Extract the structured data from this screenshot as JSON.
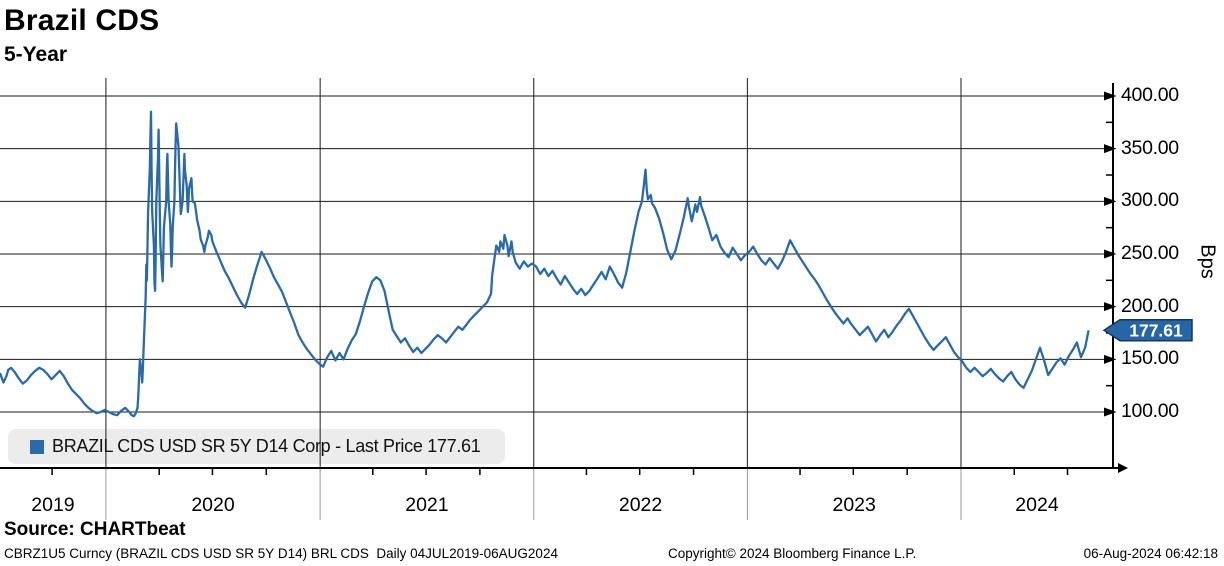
{
  "header": {
    "title": "Brazil CDS",
    "subtitle": "5-Year"
  },
  "legend": {
    "swatch_icon": "blue-square-marker",
    "swatch_color": "#2a6aa8",
    "label": "BRAZIL CDS USD SR 5Y D14 Corp - Last Price 177.61"
  },
  "price_tag": {
    "value": "177.61",
    "fill": "#2766a4",
    "border": "#16365a",
    "text_color": "#ffffff"
  },
  "footer": {
    "source": "Source: CHARTbeat",
    "description": "CBRZ1U5 Curncy (BRAZIL CDS USD SR 5Y D14) BRL CDS  Daily 04JUL2019-06AUG2024",
    "copyright": "Copyright© 2024 Bloomberg Finance L.P.",
    "timestamp": "06-Aug-2024 06:42:18"
  },
  "chart_data": {
    "type": "line",
    "title": "Brazil CDS 5-Year",
    "series_name": "BRAZIL CDS USD SR 5Y D14 Corp",
    "last_price": 177.61,
    "ylabel": "Bps",
    "grid": true,
    "legend_position": "bottom-left",
    "line_color": "#2a6aa8",
    "y_ticks": [
      400,
      350,
      300,
      250,
      200,
      150,
      100
    ],
    "y_tick_labels": [
      "400.00",
      "350.00",
      "300.00",
      "250.00",
      "200.00",
      "150.00",
      "100.00"
    ],
    "y_minor_ticks": [
      375,
      325,
      275,
      225,
      175,
      125
    ],
    "ylim": [
      47,
      412
    ],
    "x_range": [
      "2019-07-04",
      "2024-08-06"
    ],
    "x_year_labels": [
      "2019",
      "2020",
      "2021",
      "2022",
      "2023",
      "2024"
    ],
    "points": [
      [
        "2019-07-04",
        137
      ],
      [
        "2019-07-08",
        131
      ],
      [
        "2019-07-10",
        128
      ],
      [
        "2019-07-15",
        134
      ],
      [
        "2019-07-18",
        140
      ],
      [
        "2019-07-23",
        142
      ],
      [
        "2019-07-29",
        138
      ],
      [
        "2019-08-05",
        132
      ],
      [
        "2019-08-12",
        127
      ],
      [
        "2019-08-19",
        130
      ],
      [
        "2019-08-26",
        135
      ],
      [
        "2019-09-02",
        139
      ],
      [
        "2019-09-09",
        142
      ],
      [
        "2019-09-16",
        140
      ],
      [
        "2019-09-23",
        136
      ],
      [
        "2019-09-30",
        131
      ],
      [
        "2019-10-07",
        135
      ],
      [
        "2019-10-14",
        139
      ],
      [
        "2019-10-21",
        134
      ],
      [
        "2019-10-28",
        127
      ],
      [
        "2019-11-04",
        121
      ],
      [
        "2019-11-11",
        117
      ],
      [
        "2019-11-18",
        113
      ],
      [
        "2019-11-25",
        108
      ],
      [
        "2019-12-02",
        104
      ],
      [
        "2019-12-09",
        101
      ],
      [
        "2019-12-16",
        99
      ],
      [
        "2019-12-23",
        100
      ],
      [
        "2019-12-30",
        102
      ],
      [
        "2020-01-06",
        100
      ],
      [
        "2020-01-13",
        98
      ],
      [
        "2020-01-20",
        97
      ],
      [
        "2020-01-27",
        101
      ],
      [
        "2020-02-03",
        104
      ],
      [
        "2020-02-10",
        100
      ],
      [
        "2020-02-14",
        97
      ],
      [
        "2020-02-18",
        96
      ],
      [
        "2020-02-21",
        99
      ],
      [
        "2020-02-24",
        104
      ],
      [
        "2020-02-25",
        112
      ],
      [
        "2020-02-26",
        124
      ],
      [
        "2020-02-27",
        138
      ],
      [
        "2020-02-28",
        150
      ],
      [
        "2020-03-02",
        136
      ],
      [
        "2020-03-03",
        128
      ],
      [
        "2020-03-04",
        140
      ],
      [
        "2020-03-05",
        155
      ],
      [
        "2020-03-06",
        170
      ],
      [
        "2020-03-09",
        210
      ],
      [
        "2020-03-10",
        240
      ],
      [
        "2020-03-11",
        225
      ],
      [
        "2020-03-12",
        258
      ],
      [
        "2020-03-13",
        290
      ],
      [
        "2020-03-16",
        330
      ],
      [
        "2020-03-17",
        360
      ],
      [
        "2020-03-18",
        385
      ],
      [
        "2020-03-19",
        330
      ],
      [
        "2020-03-20",
        290
      ],
      [
        "2020-03-23",
        258
      ],
      [
        "2020-03-24",
        222
      ],
      [
        "2020-03-25",
        215
      ],
      [
        "2020-03-26",
        248
      ],
      [
        "2020-03-27",
        300
      ],
      [
        "2020-03-30",
        342
      ],
      [
        "2020-03-31",
        368
      ],
      [
        "2020-04-01",
        330
      ],
      [
        "2020-04-02",
        290
      ],
      [
        "2020-04-03",
        258
      ],
      [
        "2020-04-06",
        232
      ],
      [
        "2020-04-07",
        224
      ],
      [
        "2020-04-08",
        248
      ],
      [
        "2020-04-09",
        275
      ],
      [
        "2020-04-13",
        300
      ],
      [
        "2020-04-14",
        330
      ],
      [
        "2020-04-15",
        345
      ],
      [
        "2020-04-16",
        322
      ],
      [
        "2020-04-17",
        300
      ],
      [
        "2020-04-20",
        278
      ],
      [
        "2020-04-21",
        255
      ],
      [
        "2020-04-22",
        238
      ],
      [
        "2020-04-23",
        252
      ],
      [
        "2020-04-24",
        275
      ],
      [
        "2020-04-27",
        300
      ],
      [
        "2020-04-28",
        330
      ],
      [
        "2020-04-29",
        355
      ],
      [
        "2020-04-30",
        374
      ],
      [
        "2020-05-04",
        352
      ],
      [
        "2020-05-05",
        335
      ],
      [
        "2020-05-06",
        318
      ],
      [
        "2020-05-07",
        300
      ],
      [
        "2020-05-08",
        288
      ],
      [
        "2020-05-11",
        300
      ],
      [
        "2020-05-12",
        315
      ],
      [
        "2020-05-13",
        330
      ],
      [
        "2020-05-14",
        345
      ],
      [
        "2020-05-15",
        330
      ],
      [
        "2020-05-18",
        315
      ],
      [
        "2020-05-19",
        300
      ],
      [
        "2020-05-20",
        290
      ],
      [
        "2020-05-21",
        300
      ],
      [
        "2020-05-22",
        312
      ],
      [
        "2020-05-26",
        322
      ],
      [
        "2020-05-27",
        310
      ],
      [
        "2020-05-28",
        300
      ],
      [
        "2020-06-01",
        298
      ],
      [
        "2020-06-03",
        290
      ],
      [
        "2020-06-05",
        282
      ],
      [
        "2020-06-09",
        272
      ],
      [
        "2020-06-11",
        264
      ],
      [
        "2020-06-15",
        258
      ],
      [
        "2020-06-17",
        252
      ],
      [
        "2020-06-19",
        258
      ],
      [
        "2020-06-23",
        266
      ],
      [
        "2020-06-25",
        272
      ],
      [
        "2020-06-29",
        268
      ],
      [
        "2020-07-01",
        262
      ],
      [
        "2020-07-08",
        252
      ],
      [
        "2020-07-15",
        243
      ],
      [
        "2020-07-22",
        234
      ],
      [
        "2020-07-29",
        227
      ],
      [
        "2020-08-05",
        219
      ],
      [
        "2020-08-12",
        211
      ],
      [
        "2020-08-19",
        204
      ],
      [
        "2020-08-26",
        199
      ],
      [
        "2020-09-02",
        212
      ],
      [
        "2020-09-09",
        227
      ],
      [
        "2020-09-16",
        240
      ],
      [
        "2020-09-23",
        252
      ],
      [
        "2020-09-30",
        245
      ],
      [
        "2020-10-07",
        237
      ],
      [
        "2020-10-14",
        228
      ],
      [
        "2020-10-21",
        221
      ],
      [
        "2020-10-28",
        214
      ],
      [
        "2020-11-04",
        204
      ],
      [
        "2020-11-11",
        194
      ],
      [
        "2020-11-18",
        184
      ],
      [
        "2020-11-25",
        173
      ],
      [
        "2020-12-02",
        166
      ],
      [
        "2020-12-09",
        160
      ],
      [
        "2020-12-16",
        155
      ],
      [
        "2020-12-23",
        150
      ],
      [
        "2020-12-30",
        146
      ],
      [
        "2021-01-06",
        143
      ],
      [
        "2021-01-13",
        152
      ],
      [
        "2021-01-20",
        158
      ],
      [
        "2021-01-27",
        149
      ],
      [
        "2021-02-03",
        156
      ],
      [
        "2021-02-10",
        150
      ],
      [
        "2021-02-17",
        160
      ],
      [
        "2021-02-24",
        168
      ],
      [
        "2021-03-03",
        174
      ],
      [
        "2021-03-10",
        186
      ],
      [
        "2021-03-17",
        200
      ],
      [
        "2021-03-24",
        213
      ],
      [
        "2021-03-31",
        224
      ],
      [
        "2021-04-07",
        228
      ],
      [
        "2021-04-14",
        225
      ],
      [
        "2021-04-21",
        215
      ],
      [
        "2021-04-28",
        196
      ],
      [
        "2021-05-05",
        178
      ],
      [
        "2021-05-12",
        172
      ],
      [
        "2021-05-19",
        166
      ],
      [
        "2021-05-26",
        170
      ],
      [
        "2021-06-02",
        163
      ],
      [
        "2021-06-09",
        157
      ],
      [
        "2021-06-16",
        161
      ],
      [
        "2021-06-23",
        156
      ],
      [
        "2021-06-30",
        160
      ],
      [
        "2021-07-07",
        164
      ],
      [
        "2021-07-14",
        169
      ],
      [
        "2021-07-21",
        173
      ],
      [
        "2021-07-28",
        170
      ],
      [
        "2021-08-04",
        166
      ],
      [
        "2021-08-11",
        171
      ],
      [
        "2021-08-18",
        176
      ],
      [
        "2021-08-25",
        181
      ],
      [
        "2021-09-01",
        178
      ],
      [
        "2021-09-08",
        183
      ],
      [
        "2021-09-15",
        188
      ],
      [
        "2021-09-22",
        192
      ],
      [
        "2021-09-29",
        196
      ],
      [
        "2021-10-06",
        200
      ],
      [
        "2021-10-13",
        204
      ],
      [
        "2021-10-20",
        212
      ],
      [
        "2021-10-22",
        230
      ],
      [
        "2021-10-26",
        246
      ],
      [
        "2021-10-29",
        258
      ],
      [
        "2021-11-03",
        252
      ],
      [
        "2021-11-05",
        262
      ],
      [
        "2021-11-10",
        255
      ],
      [
        "2021-11-12",
        268
      ],
      [
        "2021-11-17",
        258
      ],
      [
        "2021-11-19",
        248
      ],
      [
        "2021-11-24",
        262
      ],
      [
        "2021-11-26",
        252
      ],
      [
        "2021-12-01",
        242
      ],
      [
        "2021-12-08",
        236
      ],
      [
        "2021-12-15",
        243
      ],
      [
        "2021-12-22",
        238
      ],
      [
        "2021-12-29",
        241
      ],
      [
        "2022-01-05",
        238
      ],
      [
        "2022-01-12",
        231
      ],
      [
        "2022-01-19",
        236
      ],
      [
        "2022-01-26",
        229
      ],
      [
        "2022-02-02",
        234
      ],
      [
        "2022-02-09",
        227
      ],
      [
        "2022-02-16",
        221
      ],
      [
        "2022-02-23",
        229
      ],
      [
        "2022-03-02",
        223
      ],
      [
        "2022-03-09",
        217
      ],
      [
        "2022-03-16",
        212
      ],
      [
        "2022-03-23",
        217
      ],
      [
        "2022-03-30",
        211
      ],
      [
        "2022-04-06",
        215
      ],
      [
        "2022-04-13",
        221
      ],
      [
        "2022-04-20",
        227
      ],
      [
        "2022-04-27",
        233
      ],
      [
        "2022-05-04",
        226
      ],
      [
        "2022-05-11",
        238
      ],
      [
        "2022-05-18",
        231
      ],
      [
        "2022-05-25",
        223
      ],
      [
        "2022-06-01",
        218
      ],
      [
        "2022-06-08",
        232
      ],
      [
        "2022-06-15",
        252
      ],
      [
        "2022-06-22",
        272
      ],
      [
        "2022-06-29",
        290
      ],
      [
        "2022-07-05",
        300
      ],
      [
        "2022-07-08",
        315
      ],
      [
        "2022-07-11",
        330
      ],
      [
        "2022-07-13",
        312
      ],
      [
        "2022-07-15",
        302
      ],
      [
        "2022-07-20",
        306
      ],
      [
        "2022-07-22",
        298
      ],
      [
        "2022-07-27",
        294
      ],
      [
        "2022-08-03",
        284
      ],
      [
        "2022-08-10",
        270
      ],
      [
        "2022-08-17",
        254
      ],
      [
        "2022-08-24",
        245
      ],
      [
        "2022-08-31",
        253
      ],
      [
        "2022-09-07",
        268
      ],
      [
        "2022-09-14",
        284
      ],
      [
        "2022-09-21",
        303
      ],
      [
        "2022-09-23",
        295
      ],
      [
        "2022-09-28",
        281
      ],
      [
        "2022-10-04",
        297
      ],
      [
        "2022-10-07",
        290
      ],
      [
        "2022-10-12",
        304
      ],
      [
        "2022-10-14",
        296
      ],
      [
        "2022-10-19",
        288
      ],
      [
        "2022-10-26",
        276
      ],
      [
        "2022-11-02",
        263
      ],
      [
        "2022-11-09",
        268
      ],
      [
        "2022-11-16",
        257
      ],
      [
        "2022-11-23",
        251
      ],
      [
        "2022-11-30",
        247
      ],
      [
        "2022-12-07",
        256
      ],
      [
        "2022-12-14",
        250
      ],
      [
        "2022-12-21",
        244
      ],
      [
        "2022-12-28",
        249
      ],
      [
        "2023-01-04",
        252
      ],
      [
        "2023-01-11",
        257
      ],
      [
        "2023-01-18",
        250
      ],
      [
        "2023-01-25",
        244
      ],
      [
        "2023-02-01",
        240
      ],
      [
        "2023-02-08",
        246
      ],
      [
        "2023-02-15",
        241
      ],
      [
        "2023-02-22",
        236
      ],
      [
        "2023-03-01",
        243
      ],
      [
        "2023-03-08",
        252
      ],
      [
        "2023-03-15",
        263
      ],
      [
        "2023-03-22",
        256
      ],
      [
        "2023-03-29",
        249
      ],
      [
        "2023-04-05",
        243
      ],
      [
        "2023-04-12",
        237
      ],
      [
        "2023-04-19",
        231
      ],
      [
        "2023-04-26",
        226
      ],
      [
        "2023-05-03",
        220
      ],
      [
        "2023-05-10",
        213
      ],
      [
        "2023-05-17",
        206
      ],
      [
        "2023-05-24",
        200
      ],
      [
        "2023-05-31",
        194
      ],
      [
        "2023-06-07",
        189
      ],
      [
        "2023-06-14",
        184
      ],
      [
        "2023-06-21",
        189
      ],
      [
        "2023-06-28",
        183
      ],
      [
        "2023-07-05",
        178
      ],
      [
        "2023-07-12",
        173
      ],
      [
        "2023-07-19",
        177
      ],
      [
        "2023-07-26",
        181
      ],
      [
        "2023-08-02",
        174
      ],
      [
        "2023-08-09",
        167
      ],
      [
        "2023-08-16",
        173
      ],
      [
        "2023-08-23",
        178
      ],
      [
        "2023-08-30",
        171
      ],
      [
        "2023-09-06",
        176
      ],
      [
        "2023-09-13",
        182
      ],
      [
        "2023-09-20",
        187
      ],
      [
        "2023-09-27",
        193
      ],
      [
        "2023-10-04",
        198
      ],
      [
        "2023-10-11",
        191
      ],
      [
        "2023-10-18",
        184
      ],
      [
        "2023-10-25",
        177
      ],
      [
        "2023-11-01",
        170
      ],
      [
        "2023-11-08",
        164
      ],
      [
        "2023-11-15",
        159
      ],
      [
        "2023-11-22",
        163
      ],
      [
        "2023-11-29",
        167
      ],
      [
        "2023-12-06",
        171
      ],
      [
        "2023-12-13",
        164
      ],
      [
        "2023-12-20",
        157
      ],
      [
        "2023-12-27",
        152
      ],
      [
        "2024-01-03",
        148
      ],
      [
        "2024-01-10",
        142
      ],
      [
        "2024-01-17",
        138
      ],
      [
        "2024-01-24",
        142
      ],
      [
        "2024-01-31",
        138
      ],
      [
        "2024-02-07",
        134
      ],
      [
        "2024-02-14",
        137
      ],
      [
        "2024-02-21",
        141
      ],
      [
        "2024-02-28",
        136
      ],
      [
        "2024-03-06",
        132
      ],
      [
        "2024-03-13",
        129
      ],
      [
        "2024-03-20",
        134
      ],
      [
        "2024-03-27",
        138
      ],
      [
        "2024-04-03",
        131
      ],
      [
        "2024-04-10",
        126
      ],
      [
        "2024-04-17",
        123
      ],
      [
        "2024-04-24",
        131
      ],
      [
        "2024-05-01",
        139
      ],
      [
        "2024-05-08",
        150
      ],
      [
        "2024-05-15",
        161
      ],
      [
        "2024-05-22",
        149
      ],
      [
        "2024-05-29",
        135
      ],
      [
        "2024-06-05",
        141
      ],
      [
        "2024-06-12",
        147
      ],
      [
        "2024-06-19",
        151
      ],
      [
        "2024-06-26",
        145
      ],
      [
        "2024-07-03",
        153
      ],
      [
        "2024-07-10",
        159
      ],
      [
        "2024-07-17",
        166
      ],
      [
        "2024-07-24",
        152
      ],
      [
        "2024-07-31",
        161
      ],
      [
        "2024-08-06",
        177.61
      ]
    ]
  }
}
